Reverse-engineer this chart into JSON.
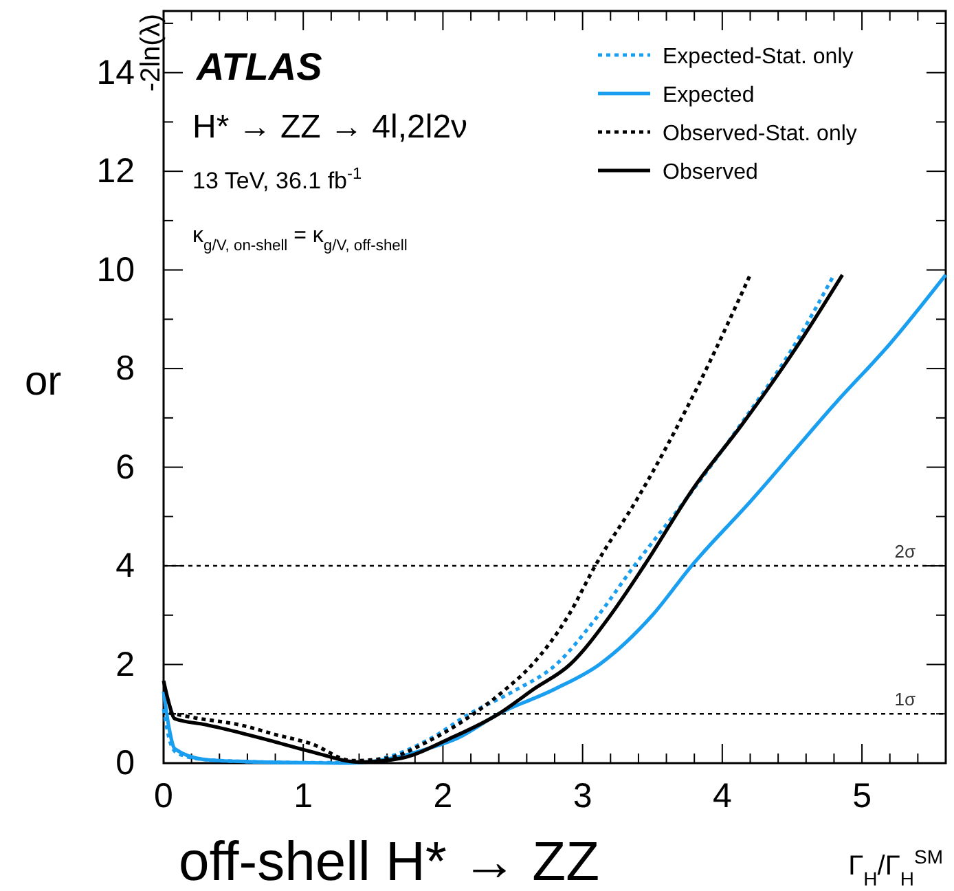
{
  "chart_data": {
    "type": "line",
    "xlabel": "Γ$_{H}$/Γ$_{H}$$^{SM}$",
    "ylabel": "-2ln(λ)",
    "xlim": [
      0,
      5.6
    ],
    "ylim": [
      0,
      15.25
    ],
    "xticks": [
      0,
      {
        "value": 0.2,
        "label": null
      },
      {
        "value": 0.4,
        "label": null
      },
      {
        "value": 0.6,
        "label": null
      },
      {
        "value": 0.8,
        "label": null
      },
      1,
      {
        "value": 1.2,
        "label": null
      },
      {
        "value": 1.4,
        "label": null
      },
      {
        "value": 1.6,
        "label": null
      },
      {
        "value": 1.8,
        "label": null
      },
      2,
      {
        "value": 2.2,
        "label": null
      },
      {
        "value": 2.4,
        "label": null
      },
      {
        "value": 2.6,
        "label": null
      },
      {
        "value": 2.8,
        "label": null
      },
      3,
      {
        "value": 3.2,
        "label": null
      },
      {
        "value": 3.4,
        "label": null
      },
      {
        "value": 3.6,
        "label": null
      },
      {
        "value": 3.8,
        "label": null
      },
      4,
      {
        "value": 4.2,
        "label": null
      },
      {
        "value": 4.4,
        "label": null
      },
      {
        "value": 4.6,
        "label": null
      },
      {
        "value": 4.8,
        "label": null
      },
      5,
      {
        "value": 5.2,
        "label": null
      },
      {
        "value": 5.4,
        "label": null
      }
    ],
    "yticks": [
      0,
      {
        "value": 1,
        "label": null
      },
      2,
      {
        "value": 3,
        "label": null
      },
      4,
      {
        "value": 5,
        "label": null
      },
      6,
      {
        "value": 7,
        "label": null
      },
      8,
      {
        "value": 9,
        "label": null
      },
      10,
      {
        "value": 11,
        "label": null
      },
      12,
      {
        "value": 13,
        "label": null
      },
      14,
      {
        "value": 15,
        "label": null
      }
    ],
    "legend": "top right",
    "grid": false,
    "series": [
      {
        "name": "Expected-Stat. only",
        "color": "#1a9ff0",
        "line_style": "dotted",
        "x": [
          0,
          0.05,
          0.1,
          0.3,
          0.6,
          1.0,
          1.3,
          1.6,
          1.9,
          2.19,
          2.5,
          2.81,
          3.1,
          3.37,
          3.7,
          4.14,
          4.5,
          4.8
        ],
        "values": [
          1.1,
          0.4,
          0.2,
          0.07,
          0.03,
          0.01,
          0.01,
          0.12,
          0.48,
          1.0,
          1.45,
          2.0,
          2.95,
          4.0,
          5.2,
          6.9,
          8.4,
          9.9
        ]
      },
      {
        "name": "Expected",
        "color": "#1a9ff0",
        "line_style": "solid",
        "x": [
          0,
          0.04,
          0.08,
          0.3,
          0.6,
          1.0,
          1.3,
          1.6,
          1.9,
          2.1,
          2.4,
          2.8,
          3.12,
          3.5,
          3.78,
          4.2,
          4.82,
          5.2,
          5.6
        ],
        "values": [
          1.45,
          0.7,
          0.29,
          0.07,
          0.03,
          0.01,
          0,
          0.08,
          0.3,
          0.5,
          1.0,
          1.5,
          2.0,
          3.0,
          4.0,
          5.3,
          7.33,
          8.5,
          9.9
        ]
      },
      {
        "name": "Observed-Stat. only",
        "color": "#000000",
        "line_style": "dotted",
        "x": [
          0.04,
          0.2,
          0.57,
          0.8,
          1.06,
          1.35,
          1.6,
          1.9,
          2.22,
          2.45,
          2.64,
          2.9,
          3.09,
          3.4,
          3.8,
          4.2
        ],
        "values": [
          1.02,
          0.93,
          0.76,
          0.58,
          0.39,
          0.05,
          0.1,
          0.45,
          1.0,
          1.5,
          2.0,
          3.0,
          4.0,
          5.4,
          7.5,
          9.9
        ]
      },
      {
        "name": "Observed",
        "color": "#000000",
        "line_style": "solid",
        "x": [
          0,
          0.04,
          0.08,
          0.3,
          0.57,
          0.8,
          1.06,
          1.4,
          1.7,
          2.05,
          2.4,
          2.65,
          2.91,
          3.2,
          3.44,
          3.8,
          4.14,
          4.5,
          4.86
        ],
        "values": [
          1.67,
          1.2,
          0.9,
          0.78,
          0.6,
          0.43,
          0.23,
          0.02,
          0.1,
          0.5,
          1.0,
          1.5,
          2.0,
          3.0,
          4.0,
          5.6,
          6.86,
          8.3,
          9.9
        ]
      }
    ],
    "ref_lines": [
      {
        "axis": "y",
        "value": 1,
        "label": "1σ",
        "line_style": "dotted",
        "color": "#000000"
      },
      {
        "axis": "y",
        "value": 4,
        "label": "2σ",
        "line_style": "dotted",
        "color": "#000000"
      }
    ],
    "annotations": [
      "ATLAS",
      "H* → ZZ → 4l,2l2ν",
      "13 TeV, 36.1 fb$^{-1}$",
      "κ$_{g/V, on-shell}$ = κ$_{g/V, off-shell}$",
      "or",
      "off-shell H* → ZZ"
    ]
  }
}
